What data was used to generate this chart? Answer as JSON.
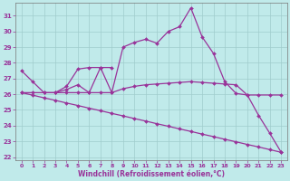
{
  "xlabel": "Windchill (Refroidissement éolien,°C)",
  "background_color": "#c0eaea",
  "grid_color": "#a0cccc",
  "line_color": "#993399",
  "xlim": [
    -0.5,
    23.5
  ],
  "ylim": [
    21.8,
    31.8
  ],
  "yticks": [
    22,
    23,
    24,
    25,
    26,
    27,
    28,
    29,
    30,
    31
  ],
  "xticks": [
    0,
    1,
    2,
    3,
    4,
    5,
    6,
    7,
    8,
    9,
    10,
    11,
    12,
    13,
    14,
    15,
    16,
    17,
    18,
    19,
    20,
    21,
    22,
    23
  ],
  "curve1_x": [
    0,
    1,
    2,
    3,
    4,
    5,
    6,
    7,
    8,
    9,
    10,
    11,
    12,
    13,
    14,
    15,
    16,
    17,
    18,
    19,
    20,
    21,
    22,
    23
  ],
  "curve1_y": [
    27.5,
    26.8,
    26.1,
    26.1,
    26.3,
    26.6,
    26.1,
    27.7,
    26.1,
    29.0,
    29.3,
    29.5,
    29.25,
    30.0,
    30.3,
    31.5,
    29.65,
    28.6,
    26.8,
    26.05,
    25.95,
    24.65,
    23.5,
    22.3
  ],
  "curve2_x": [
    3,
    4,
    5,
    6,
    7,
    8
  ],
  "curve2_y": [
    26.1,
    26.5,
    27.6,
    27.7,
    27.7,
    27.7
  ],
  "curve3_x": [
    0,
    1,
    2,
    3,
    4,
    5,
    6,
    7,
    8,
    9,
    10,
    11,
    12,
    13,
    14,
    15,
    16,
    17,
    18,
    19,
    20,
    21,
    22,
    23
  ],
  "curve3_y": [
    26.1,
    26.1,
    26.1,
    26.1,
    26.1,
    26.1,
    26.1,
    26.1,
    26.1,
    26.35,
    26.5,
    26.6,
    26.65,
    26.7,
    26.75,
    26.8,
    26.75,
    26.7,
    26.65,
    26.6,
    25.95,
    25.95,
    25.95,
    25.95
  ],
  "curve4_x": [
    0,
    1,
    2,
    3,
    4,
    5,
    6,
    7,
    8,
    9,
    10,
    11,
    12,
    13,
    14,
    15,
    16,
    17,
    18,
    19,
    20,
    21,
    22,
    23
  ],
  "curve4_y": [
    26.1,
    25.94,
    25.77,
    25.61,
    25.44,
    25.28,
    25.11,
    24.95,
    24.78,
    24.62,
    24.45,
    24.29,
    24.12,
    23.96,
    23.79,
    23.63,
    23.46,
    23.3,
    23.13,
    22.97,
    22.8,
    22.64,
    22.47,
    22.3
  ]
}
